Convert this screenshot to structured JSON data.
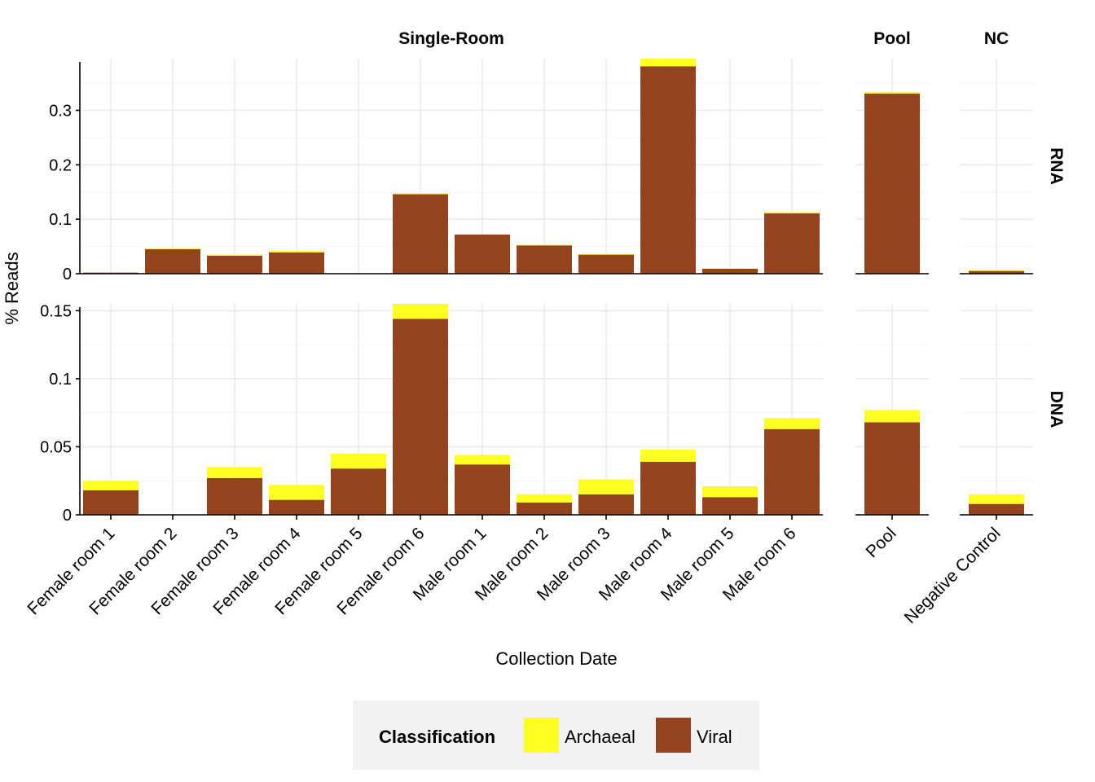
{
  "chart_data": {
    "type": "bar",
    "stacked": true,
    "xlabel": "Collection Date",
    "ylabel": "% Reads",
    "columns": [
      {
        "title": "Single-Room",
        "categories": [
          "Female room 1",
          "Female room 2",
          "Female room 3",
          "Female room 4",
          "Female room 5",
          "Female room 6",
          "Male room 1",
          "Male room 2",
          "Male room 3",
          "Male room 4",
          "Male room 5",
          "Male room 6"
        ]
      },
      {
        "title": "Pool",
        "categories": [
          "Pool"
        ]
      },
      {
        "title": "NC",
        "categories": [
          "Negative Control"
        ]
      }
    ],
    "rows": [
      {
        "title": "RNA",
        "ylim": [
          0,
          0.395
        ],
        "yticks": [
          0,
          0.1,
          0.2,
          0.3
        ],
        "yticklabels": [
          "0",
          "0.1",
          "0.2",
          "0.3"
        ],
        "series": [
          {
            "name": "Viral",
            "values": [
              [
                0.002,
                0.045,
                0.033,
                0.039,
                0,
                0.146,
                0.072,
                0.052,
                0.035,
                0.381,
                0.009,
                0.111
              ],
              [
                0.331
              ],
              [
                0.005
              ]
            ]
          },
          {
            "name": "Archaeal",
            "values": [
              [
                0,
                0.002,
                0.002,
                0.003,
                0,
                0.002,
                0,
                0.001,
                0.001,
                0.014,
                0.001,
                0.002
              ],
              [
                0.003
              ],
              [
                0.002
              ]
            ]
          }
        ]
      },
      {
        "title": "DNA",
        "ylim": [
          0,
          0.155
        ],
        "yticks": [
          0,
          0.05,
          0.1,
          0.15
        ],
        "yticklabels": [
          "0",
          "0.05",
          "0.1",
          "0.15"
        ],
        "series": [
          {
            "name": "Viral",
            "values": [
              [
                0.018,
                0,
                0.027,
                0.011,
                0.034,
                0.144,
                0.037,
                0.009,
                0.015,
                0.039,
                0.013,
                0.063
              ],
              [
                0.068
              ],
              [
                0.008
              ]
            ]
          },
          {
            "name": "Archaeal",
            "values": [
              [
                0.007,
                0,
                0.008,
                0.011,
                0.011,
                0.011,
                0.007,
                0.006,
                0.011,
                0.009,
                0.008,
                0.008
              ],
              [
                0.009
              ],
              [
                0.007
              ]
            ]
          }
        ]
      }
    ],
    "legend": {
      "title": "Classification",
      "placement": "bottom",
      "entries": [
        {
          "name": "Archaeal",
          "color": "#ffff24"
        },
        {
          "name": "Viral",
          "color": "#93441f"
        }
      ]
    },
    "colors": {
      "Viral": "#93441f",
      "Archaeal": "#ffff24",
      "grid": "#ebebeb",
      "legend_bg": "#f2f2f2"
    },
    "grid": true
  }
}
